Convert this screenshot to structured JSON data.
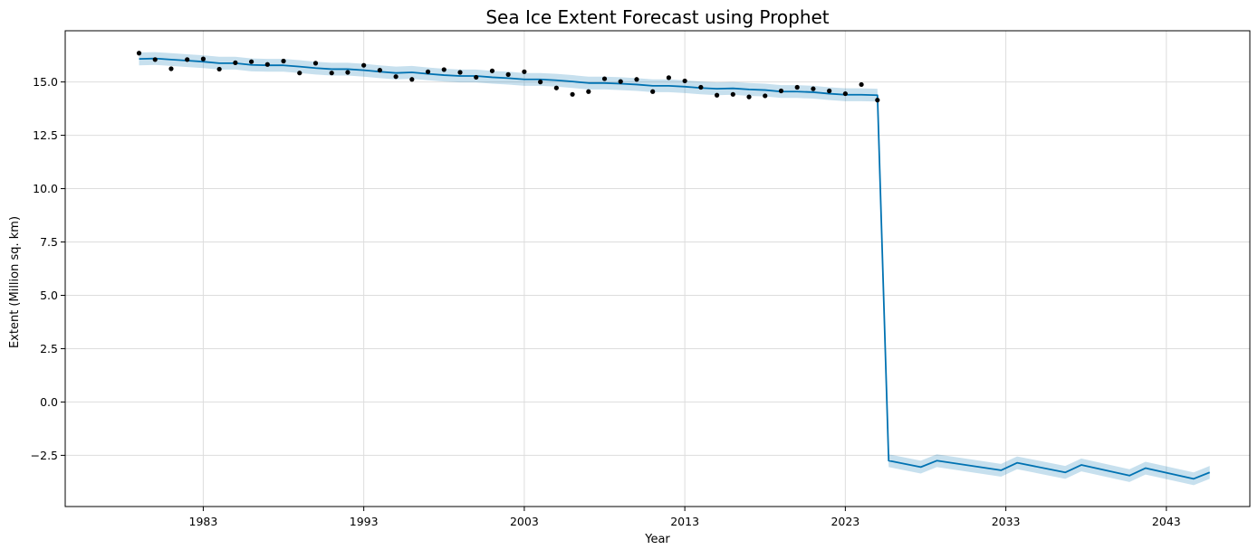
{
  "chart_data": {
    "type": "line",
    "title": "Sea Ice Extent Forecast using Prophet",
    "xlabel": "Year",
    "ylabel": "Extent (Million sq. km)",
    "xlim": [
      1974.4,
      2048.2
    ],
    "ylim": [
      -4.9,
      17.4
    ],
    "xticks": [
      1983,
      1993,
      2003,
      2013,
      2023,
      2033,
      2043
    ],
    "yticks": [
      -2.5,
      0.0,
      2.5,
      5.0,
      7.5,
      10.0,
      12.5,
      15.0
    ],
    "ytick_labels": [
      "−2.5",
      "0.0",
      "2.5",
      "5.0",
      "7.5",
      "10.0",
      "12.5",
      "15.0"
    ],
    "grid": true,
    "colors": {
      "forecast_line": "#0072B2",
      "uncertainty_band": "#0072B2",
      "observed_points": "#000000",
      "grid": "#dddddd"
    },
    "series": [
      {
        "kind": "observed",
        "x": [
          1979,
          1980,
          1981,
          1982,
          1983,
          1984,
          1985,
          1986,
          1987,
          1988,
          1989,
          1990,
          1991,
          1992,
          1993,
          1994,
          1995,
          1996,
          1997,
          1998,
          1999,
          2000,
          2001,
          2002,
          2003,
          2004,
          2005,
          2006,
          2007,
          2008,
          2009,
          2010,
          2011,
          2012,
          2013,
          2014,
          2015,
          2016,
          2017,
          2018,
          2019,
          2020,
          2021,
          2022,
          2023,
          2024,
          2025
        ],
        "y": [
          16.35,
          16.05,
          15.62,
          16.05,
          16.08,
          15.6,
          15.9,
          15.95,
          15.82,
          15.98,
          15.42,
          15.88,
          15.42,
          15.45,
          15.78,
          15.55,
          15.25,
          15.12,
          15.48,
          15.58,
          15.45,
          15.22,
          15.52,
          15.35,
          15.48,
          15.0,
          14.72,
          14.42,
          14.55,
          15.15,
          15.02,
          15.12,
          14.55,
          15.2,
          15.05,
          14.75,
          14.38,
          14.42,
          14.3,
          14.35,
          14.58,
          14.75,
          14.68,
          14.58,
          14.45,
          14.88,
          14.15
        ]
      },
      {
        "kind": "forecast",
        "x": [
          1979,
          1980,
          1981,
          1982,
          1983,
          1984,
          1985,
          1986,
          1987,
          1988,
          1989,
          1990,
          1991,
          1992,
          1993,
          1994,
          1995,
          1996,
          1997,
          1998,
          1999,
          2000,
          2001,
          2002,
          2003,
          2004,
          2005,
          2006,
          2007,
          2008,
          2009,
          2010,
          2011,
          2012,
          2013,
          2014,
          2015,
          2016,
          2017,
          2018,
          2019,
          2020,
          2021,
          2022,
          2023,
          2024,
          2025,
          2025.7,
          2027.7,
          2028.7,
          2032.7,
          2033.7,
          2036.7,
          2037.7,
          2040.7,
          2041.7,
          2044.7,
          2045.7
        ],
        "y": [
          16.08,
          16.1,
          16.05,
          16.0,
          15.95,
          15.88,
          15.88,
          15.8,
          15.78,
          15.78,
          15.72,
          15.65,
          15.6,
          15.6,
          15.55,
          15.48,
          15.42,
          15.45,
          15.38,
          15.32,
          15.28,
          15.28,
          15.22,
          15.18,
          15.12,
          15.12,
          15.08,
          15.02,
          14.95,
          14.95,
          14.92,
          14.88,
          14.82,
          14.82,
          14.78,
          14.72,
          14.68,
          14.7,
          14.65,
          14.62,
          14.55,
          14.55,
          14.52,
          14.45,
          14.4,
          14.4,
          14.38,
          -2.75,
          -3.05,
          -2.75,
          -3.2,
          -2.85,
          -3.3,
          -2.95,
          -3.45,
          -3.1,
          -3.6,
          -3.3
        ]
      },
      {
        "kind": "uncertainty",
        "offset": 0.3
      }
    ]
  }
}
